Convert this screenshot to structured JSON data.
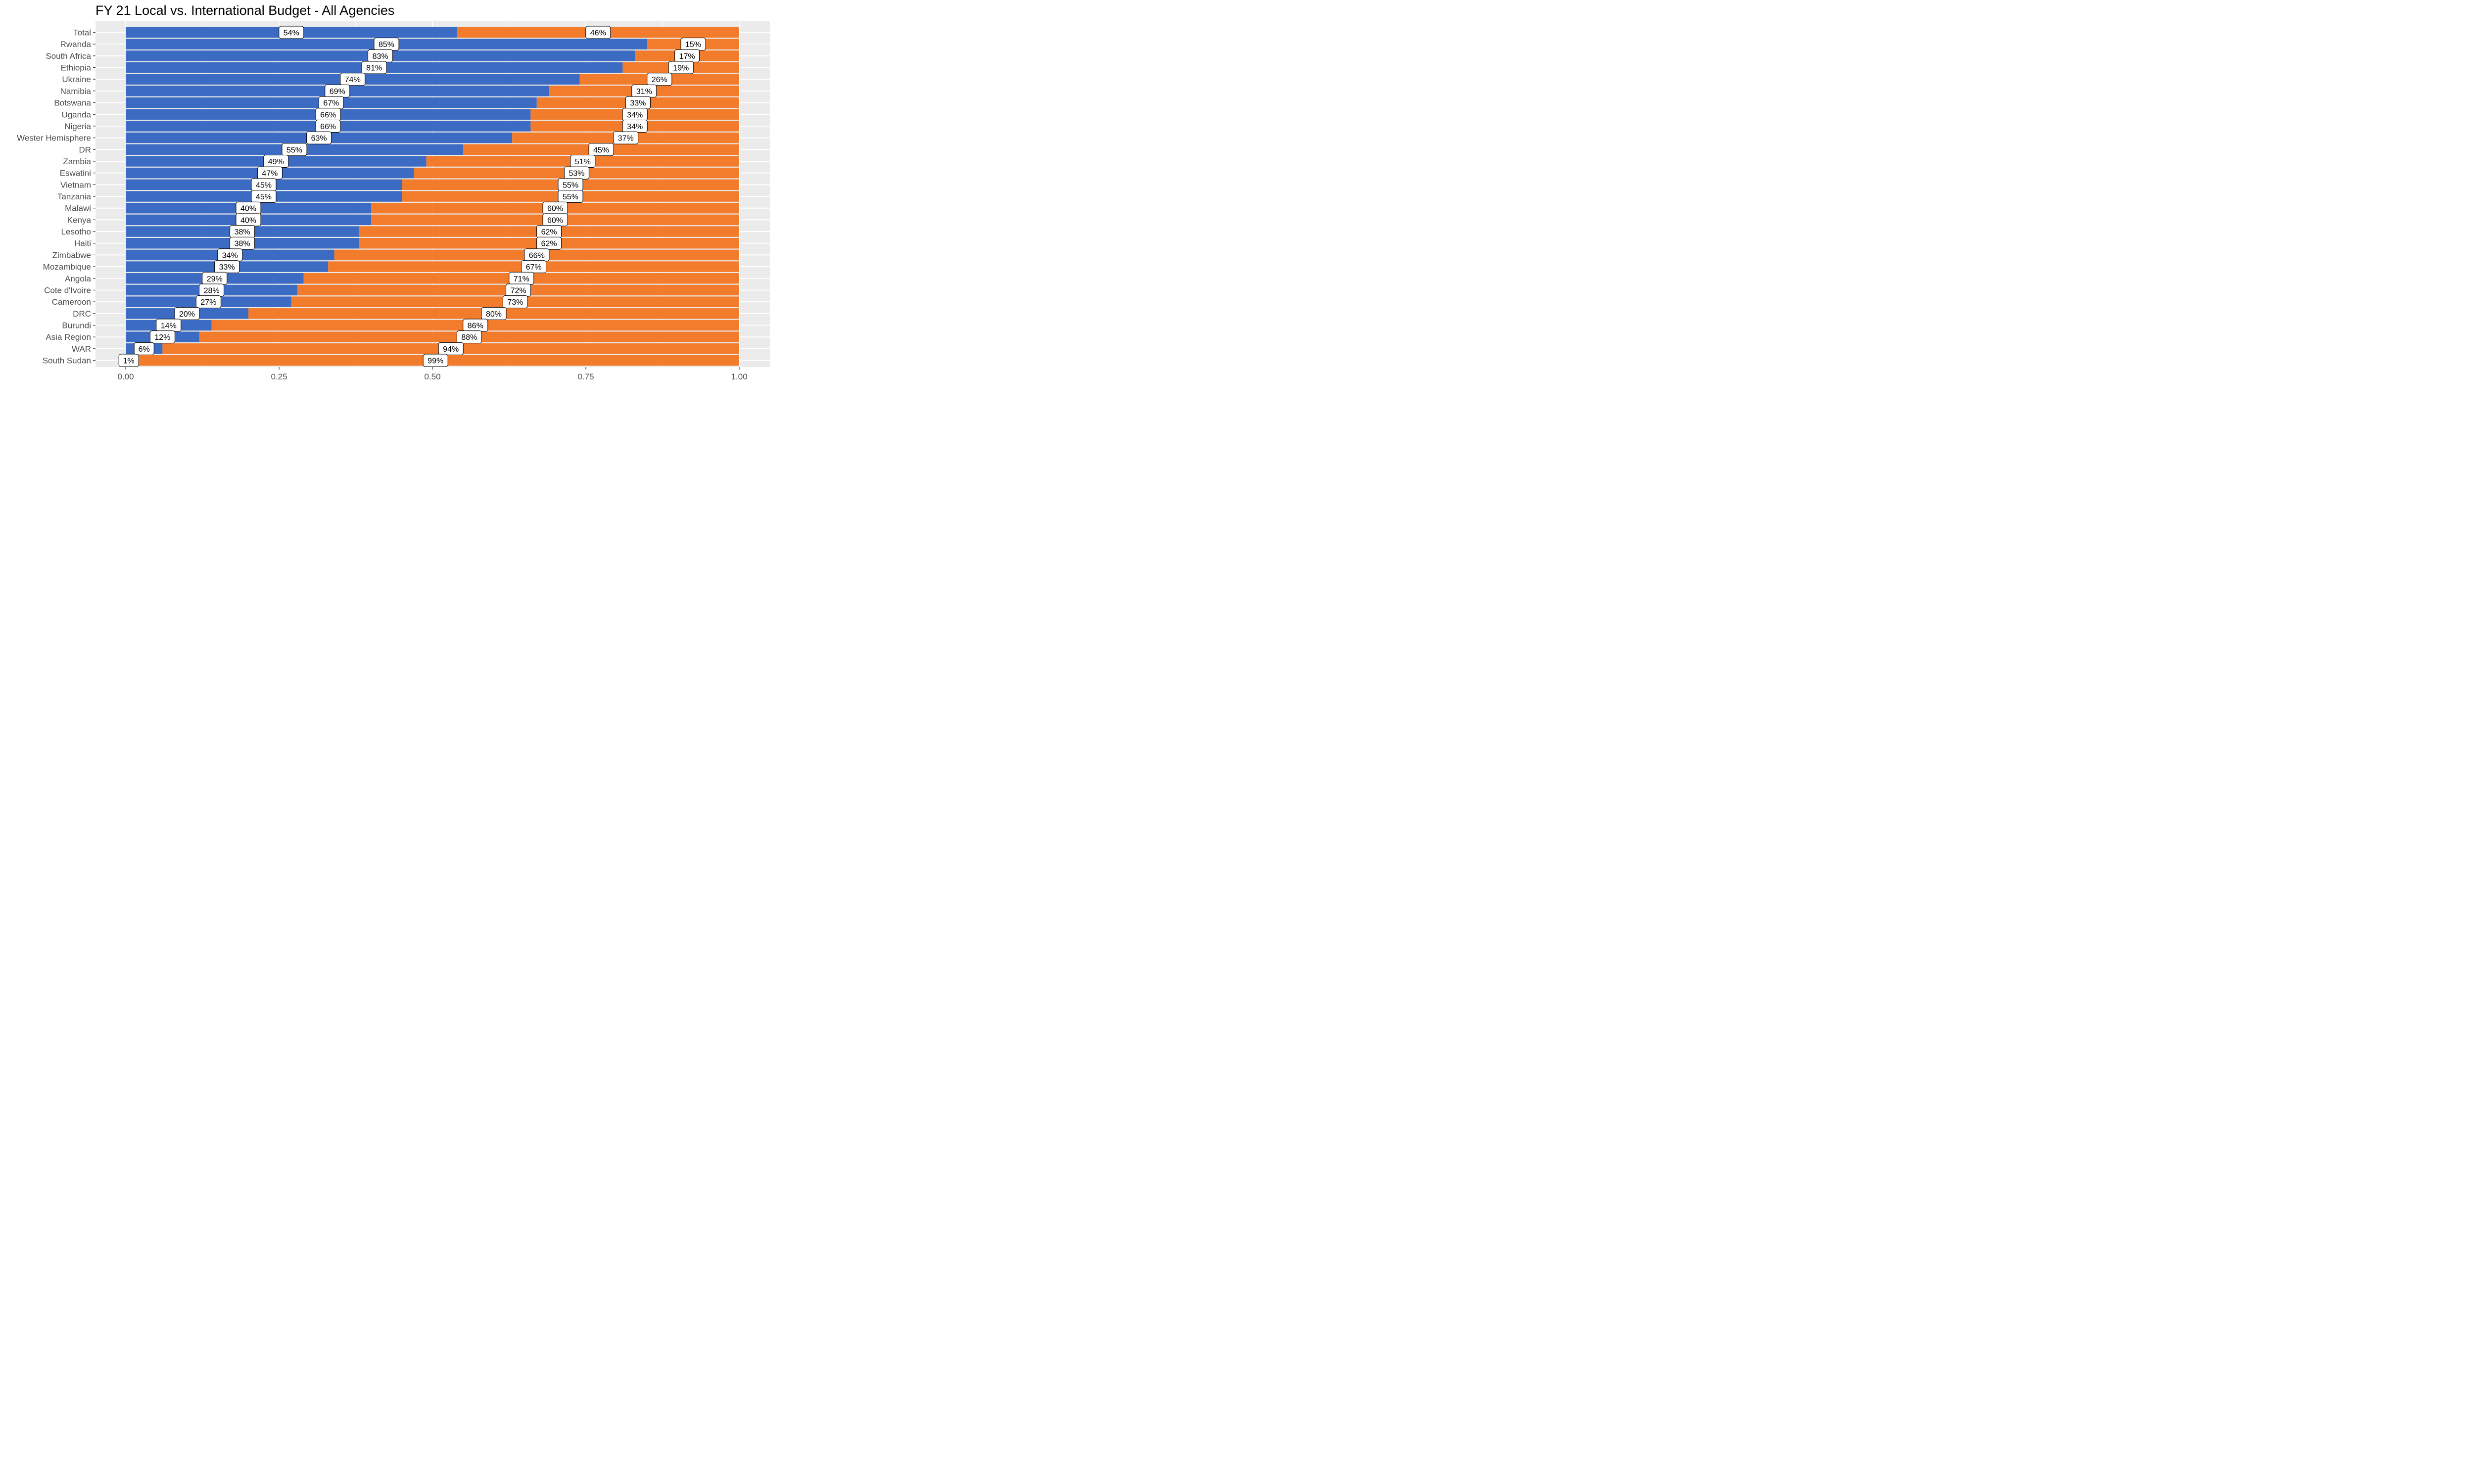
{
  "chart_data": {
    "type": "bar",
    "orientation": "horizontal",
    "stacked": true,
    "title": "FY 21 Local vs. International Budget - All Agencies",
    "xlabel": "",
    "ylabel": "",
    "xlim": [
      0,
      1
    ],
    "x_ticks": [
      "0.00",
      "0.25",
      "0.50",
      "0.75",
      "1.00"
    ],
    "x_tick_values": [
      0,
      0.25,
      0.5,
      0.75,
      1.0
    ],
    "grid": true,
    "legend": "none",
    "colors": {
      "local": "#3b6bc2",
      "international": "#f27b2c",
      "panel": "#ebebeb",
      "grid": "#ffffff"
    },
    "categories": [
      "Total",
      "Rwanda",
      "South Africa",
      "Ethiopia",
      "Ukraine",
      "Namibia",
      "Botswana",
      "Uganda",
      "Nigeria",
      "Wester Hemisphere",
      "DR",
      "Zambia",
      "Eswatini",
      "Vietnam",
      "Tanzania",
      "Malawi",
      "Kenya",
      "Lesotho",
      "Haiti",
      "Zimbabwe",
      "Mozambique",
      "Angola",
      "Cote d'Ivoire",
      "Cameroon",
      "DRC",
      "Burundi",
      "Asia Region",
      "WAR",
      "South Sudan"
    ],
    "series": [
      {
        "values": [
          0.54,
          0.85,
          0.83,
          0.81,
          0.74,
          0.69,
          0.67,
          0.66,
          0.66,
          0.63,
          0.55,
          0.49,
          0.47,
          0.45,
          0.45,
          0.4,
          0.4,
          0.38,
          0.38,
          0.34,
          0.33,
          0.29,
          0.28,
          0.27,
          0.2,
          0.14,
          0.12,
          0.06,
          0.01
        ]
      },
      {
        "values": [
          0.46,
          0.15,
          0.17,
          0.19,
          0.26,
          0.31,
          0.33,
          0.34,
          0.34,
          0.37,
          0.45,
          0.51,
          0.53,
          0.55,
          0.55,
          0.6,
          0.6,
          0.62,
          0.62,
          0.66,
          0.67,
          0.71,
          0.72,
          0.73,
          0.8,
          0.86,
          0.88,
          0.94,
          0.99
        ]
      }
    ],
    "data_labels": [
      [
        "54%",
        "85%",
        "83%",
        "81%",
        "74%",
        "69%",
        "67%",
        "66%",
        "66%",
        "63%",
        "55%",
        "49%",
        "47%",
        "45%",
        "45%",
        "40%",
        "40%",
        "38%",
        "38%",
        "34%",
        "33%",
        "29%",
        "28%",
        "27%",
        "20%",
        "14%",
        "12%",
        "6%",
        "1%"
      ],
      [
        "46%",
        "15%",
        "17%",
        "19%",
        "26%",
        "31%",
        "33%",
        "34%",
        "34%",
        "37%",
        "45%",
        "51%",
        "53%",
        "55%",
        "55%",
        "60%",
        "60%",
        "62%",
        "62%",
        "66%",
        "67%",
        "71%",
        "72%",
        "73%",
        "80%",
        "86%",
        "88%",
        "94%",
        "99%"
      ]
    ]
  }
}
